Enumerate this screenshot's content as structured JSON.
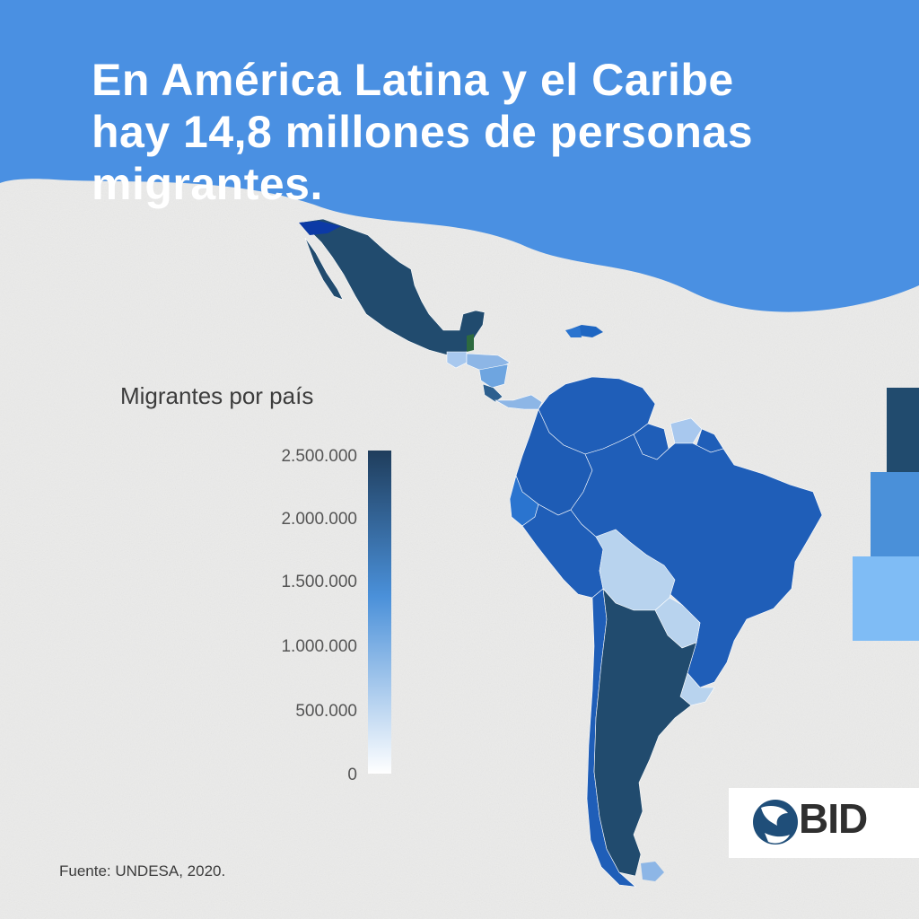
{
  "title": "En América Latina y el Caribe hay 14,8 millones de personas migrantes.",
  "legend": {
    "title": "Migrantes por país",
    "ticks": [
      "2.500.000",
      "2.000.000",
      "1.500.000",
      "1.000.000",
      "500.000",
      "0"
    ],
    "range": [
      0,
      2500000
    ],
    "colors": [
      "#ffffff",
      "#4a90d9",
      "#1f3d5c"
    ]
  },
  "source": "Fuente: UNDESA, 2020.",
  "logo": {
    "text": "BID"
  },
  "colors": {
    "header": "#4a90e2",
    "background": "#ebebea",
    "dark_blue": "#214b6e",
    "mid_blue": "#1e66c2",
    "light_blue": "#b8d3ee",
    "deco_1": "#214b6e",
    "deco_2": "#4a90d9",
    "deco_3": "#7fbcf5"
  }
}
